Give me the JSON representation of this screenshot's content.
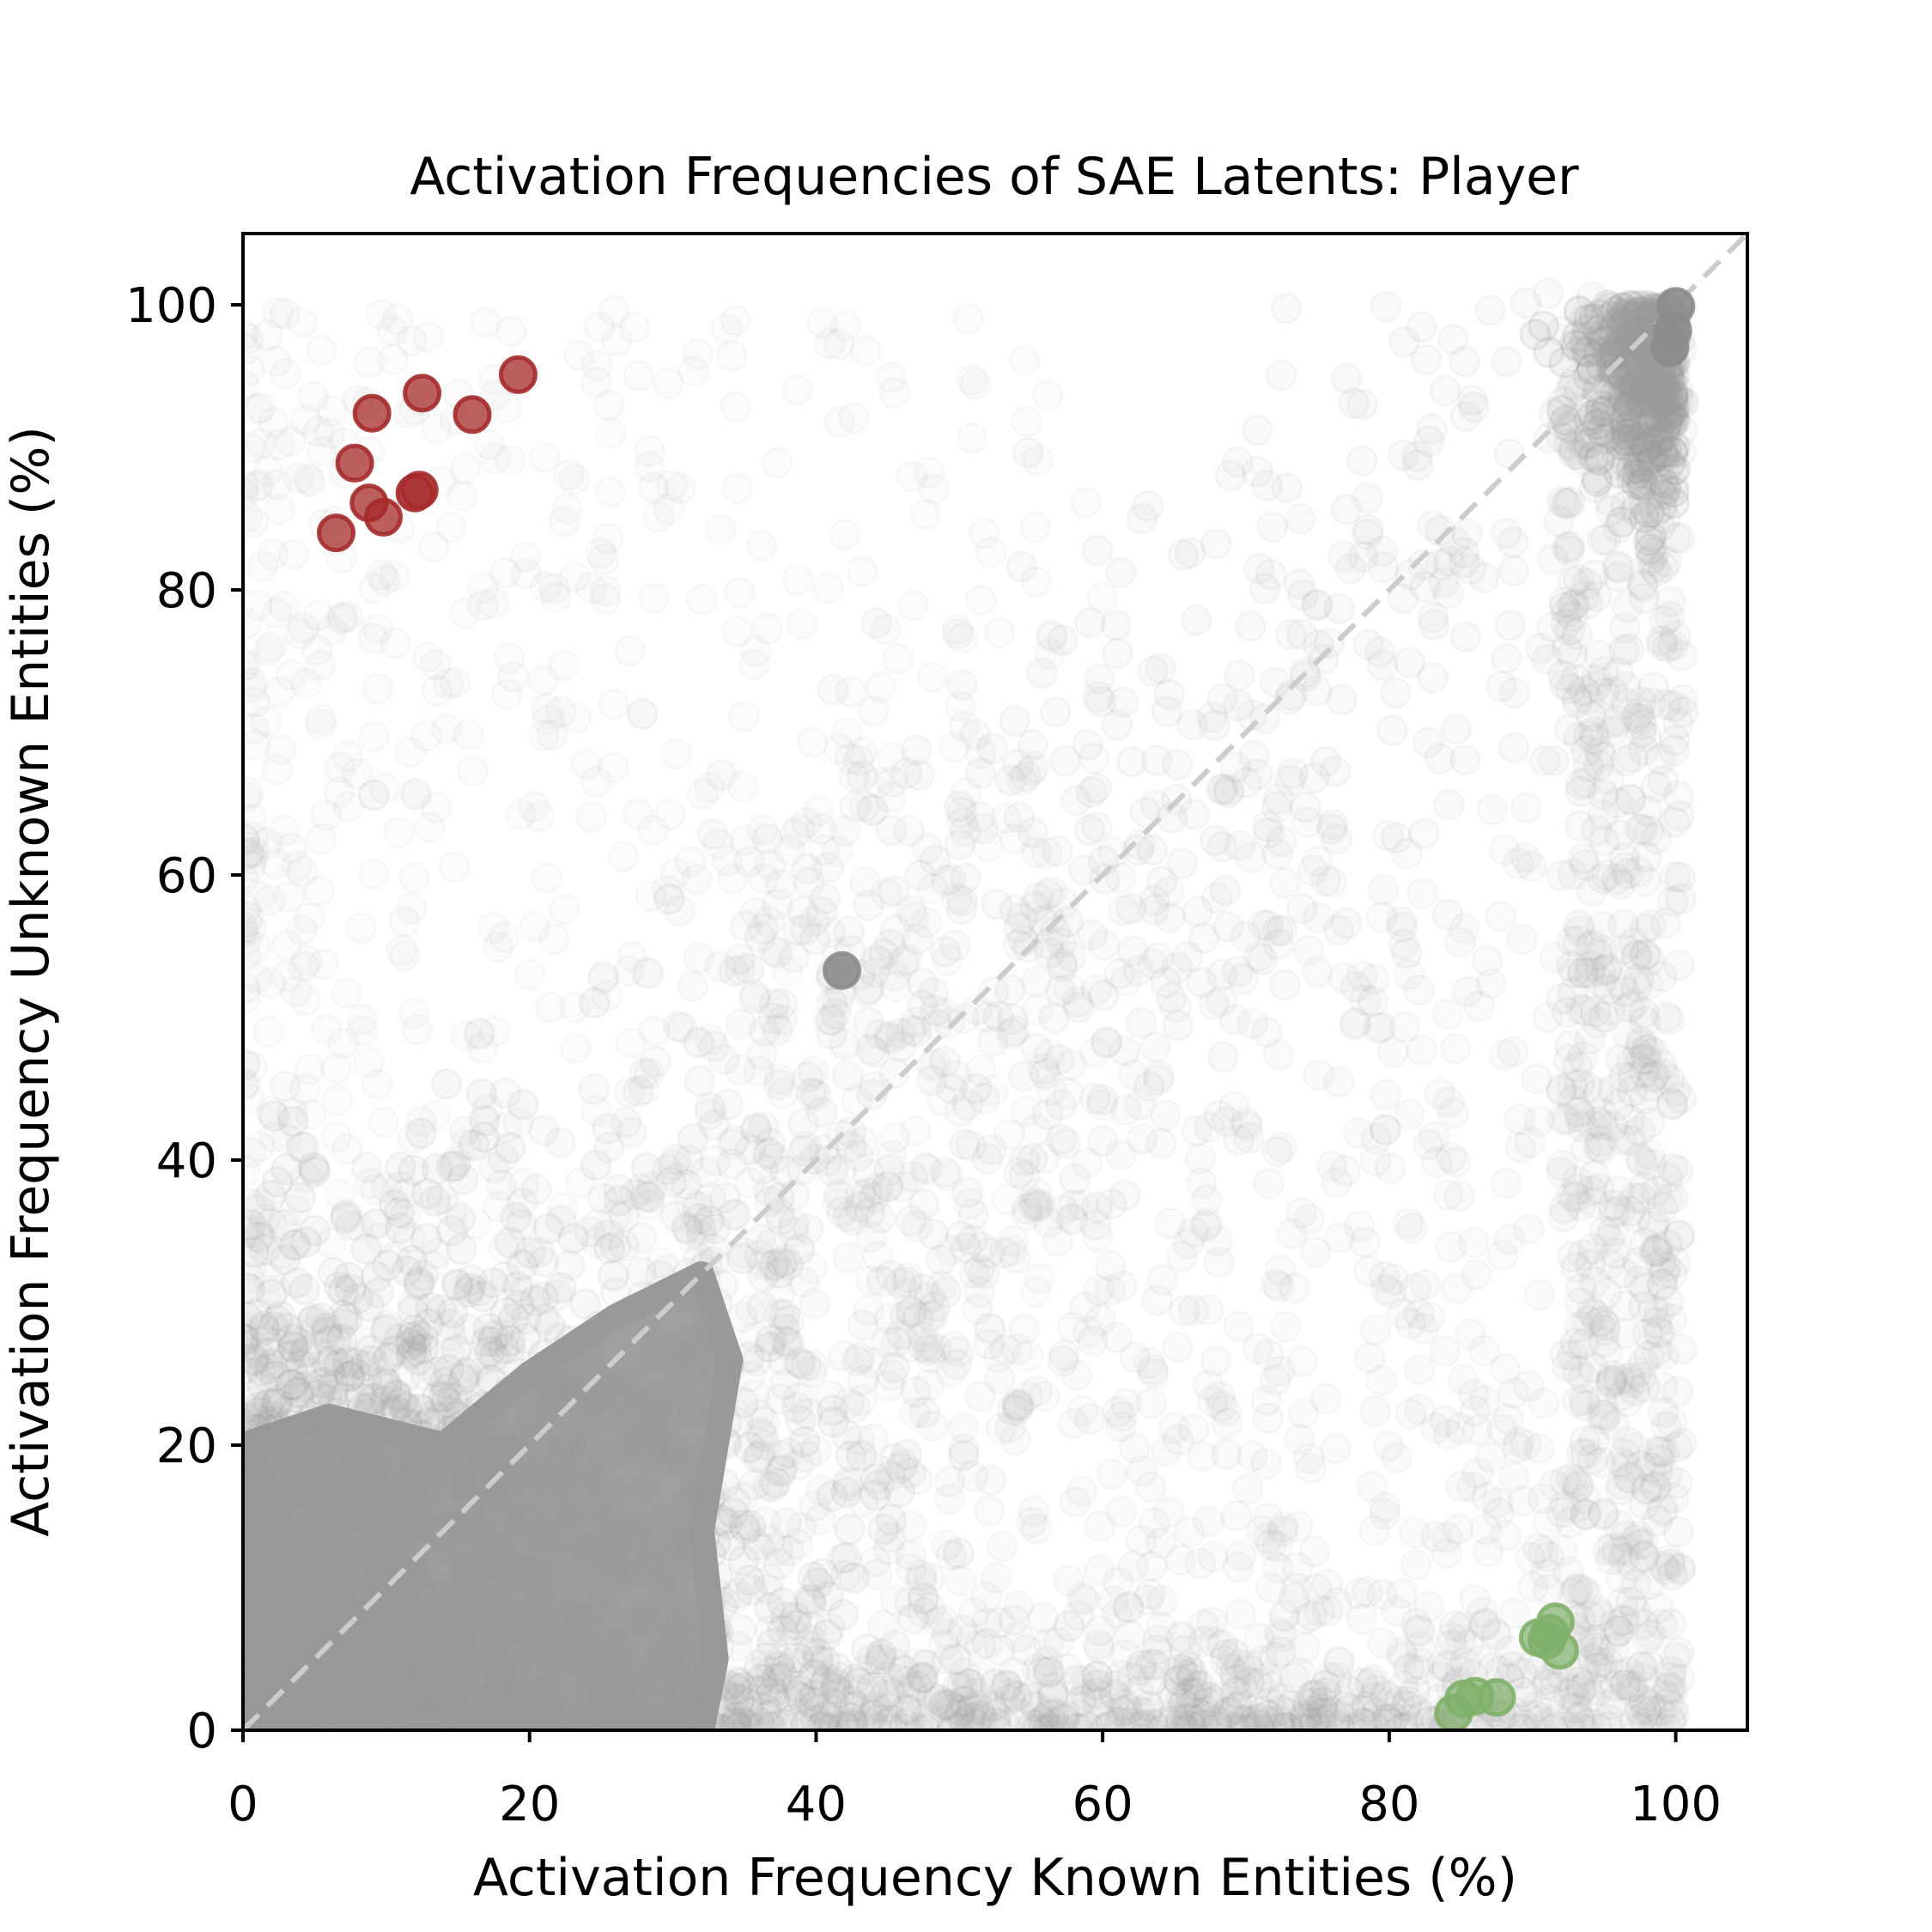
{
  "chart_data": {
    "type": "scatter",
    "title": "Activation Frequencies of SAE Latents: Player",
    "xlabel": "Activation Frequency Known Entities (%)",
    "ylabel": "Activation Frequency Unknown Entities (%)",
    "xlim": [
      0,
      105
    ],
    "ylim": [
      0,
      105
    ],
    "x_ticks": [
      "0",
      "20",
      "40",
      "60",
      "80",
      "100"
    ],
    "y_ticks": [
      "0",
      "20",
      "40",
      "60",
      "80",
      "100"
    ],
    "grid": false,
    "legend": "none",
    "reference_line": {
      "from": [
        0,
        0
      ],
      "to": [
        105,
        105
      ],
      "style": "dashed",
      "color": "#cccccc"
    },
    "colors": {
      "background_points": "#9a9a9a",
      "unknown_selective": "#a52a2a",
      "known_selective": "#7fb069",
      "highlight_point": "#8c8c8c"
    },
    "series": [
      {
        "points": [
          [
            6.5,
            84.0
          ],
          [
            7.8,
            88.9
          ],
          [
            8.8,
            86.1
          ],
          [
            9.0,
            92.4
          ],
          [
            9.8,
            85.1
          ],
          [
            12.0,
            86.8
          ],
          [
            12.3,
            87.0
          ],
          [
            12.5,
            93.8
          ],
          [
            16.0,
            92.3
          ],
          [
            19.2,
            95.1
          ]
        ]
      },
      {
        "points": [
          [
            84.5,
            1.2
          ],
          [
            85.2,
            2.2
          ],
          [
            86.0,
            2.4
          ],
          [
            87.5,
            2.3
          ],
          [
            90.4,
            6.5
          ],
          [
            91.0,
            6.3
          ],
          [
            91.6,
            7.6
          ],
          [
            91.9,
            5.6
          ],
          [
            91.2,
            6.8
          ]
        ]
      },
      {
        "points": [
          [
            41.8,
            53.3
          ],
          [
            100,
            99.9
          ],
          [
            99.8,
            98.2
          ],
          [
            99.6,
            97.0
          ]
        ]
      }
    ]
  }
}
